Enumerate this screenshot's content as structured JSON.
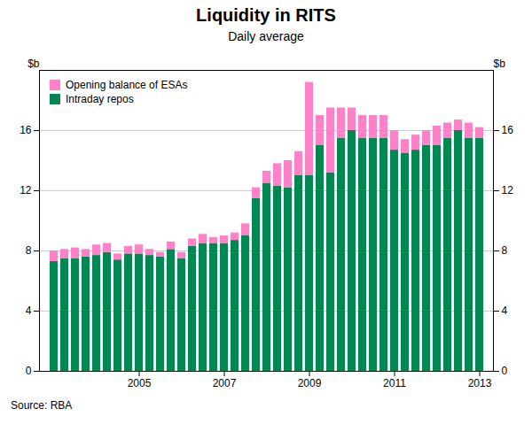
{
  "chart_data": {
    "type": "bar",
    "stacked": true,
    "title": "Liquidity in RITS",
    "subtitle": "Daily average",
    "ylabel": "$b",
    "source": "Source: RBA",
    "categories": [
      null,
      null,
      null,
      null,
      null,
      null,
      null,
      null,
      "2005",
      null,
      null,
      null,
      null,
      null,
      null,
      null,
      "2007",
      null,
      null,
      null,
      null,
      null,
      null,
      null,
      "2009",
      null,
      null,
      null,
      null,
      null,
      null,
      null,
      "2011",
      null,
      null,
      null,
      null,
      null,
      null,
      null,
      "2013"
    ],
    "series": [
      {
        "name": "Intraday repos",
        "color": "#008850",
        "values": [
          7.3,
          7.5,
          7.5,
          7.6,
          7.7,
          7.9,
          7.4,
          7.8,
          7.8,
          7.7,
          7.6,
          8.1,
          7.5,
          8.3,
          8.5,
          8.5,
          8.5,
          8.7,
          9.0,
          11.5,
          12.5,
          12.3,
          12.2,
          13.0,
          13.0,
          15.0,
          13.2,
          15.5,
          16.0,
          15.5,
          15.5,
          15.5,
          14.7,
          14.5,
          14.7,
          15.0,
          15.0,
          15.5,
          16.0,
          15.5,
          15.5
        ]
      },
      {
        "name": "Opening balance of ESAs",
        "color": "#FF82C8",
        "values": [
          0.7,
          0.6,
          0.7,
          0.5,
          0.7,
          0.6,
          0.4,
          0.5,
          0.6,
          0.4,
          0.3,
          0.5,
          0.4,
          0.5,
          0.6,
          0.4,
          0.5,
          0.5,
          0.8,
          0.7,
          0.8,
          1.5,
          1.8,
          1.6,
          6.2,
          2.0,
          4.3,
          2.0,
          1.5,
          1.5,
          1.5,
          1.5,
          1.3,
          0.9,
          1.0,
          1.0,
          1.3,
          1.0,
          0.7,
          1.0,
          0.7
        ]
      }
    ],
    "ylim": [
      0,
      20
    ],
    "yticks": [
      0,
      4,
      8,
      12,
      16
    ],
    "grid": true,
    "legend": "upper left"
  }
}
